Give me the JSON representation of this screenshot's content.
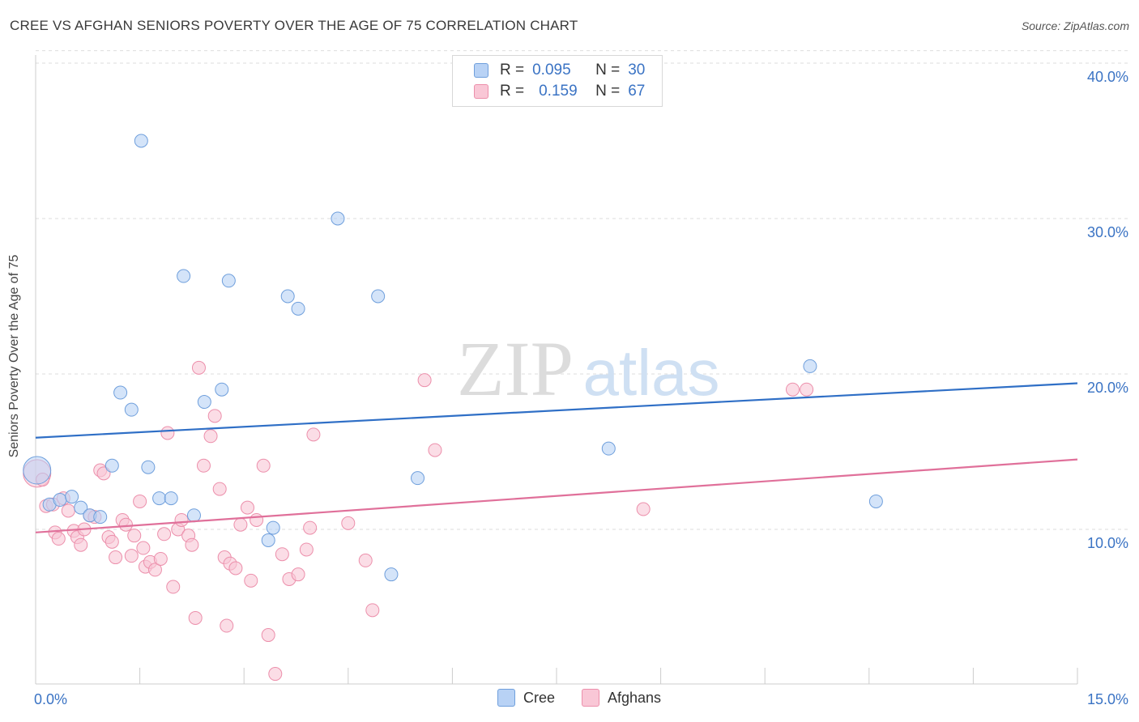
{
  "title": "CREE VS AFGHAN SENIORS POVERTY OVER THE AGE OF 75 CORRELATION CHART",
  "source": "Source: ZipAtlas.com",
  "watermark": {
    "zip": "ZIP",
    "atlas": "atlas"
  },
  "legend_top": {
    "cree": {
      "r_label": "R =",
      "r_value": "0.095",
      "n_label": "N =",
      "n_value": "30"
    },
    "afghans": {
      "r_label": "R =",
      "r_value": "0.159",
      "n_label": "N =",
      "n_value": "67"
    }
  },
  "legend_bottom": {
    "cree": "Cree",
    "afghans": "Afghans"
  },
  "colors": {
    "cree_fill": "#b8d2f5",
    "cree_stroke": "#6f9fdc",
    "cree_line": "#2f6fc6",
    "afghan_fill": "#f9c7d6",
    "afghan_stroke": "#ec8fab",
    "afghan_line": "#e0709a",
    "grid": "#dddddd",
    "tick_label": "#3a73c4"
  },
  "chart_data": {
    "type": "scatter",
    "title": "CREE VS AFGHAN SENIORS POVERTY OVER THE AGE OF 75 CORRELATION CHART",
    "xlabel": "",
    "ylabel": "Seniors Poverty Over the Age of 75",
    "xlim": [
      0,
      15
    ],
    "ylim": [
      0,
      40.8
    ],
    "x_tick_labels": [
      "0.0%",
      "15.0%"
    ],
    "y_ticks": [
      10,
      20,
      30,
      40
    ],
    "y_tick_labels": [
      "10.0%",
      "20.0%",
      "30.0%",
      "40.0%"
    ],
    "grid": true,
    "legend_position": "top-center",
    "series": [
      {
        "name": "Cree",
        "R": 0.095,
        "N": 30,
        "trend": {
          "x": [
            0,
            15
          ],
          "y": [
            15.9,
            19.4
          ]
        },
        "points": [
          {
            "x": 0.02,
            "y": 13.8,
            "big": true
          },
          {
            "x": 0.2,
            "y": 11.6
          },
          {
            "x": 0.35,
            "y": 11.9
          },
          {
            "x": 0.52,
            "y": 12.1
          },
          {
            "x": 0.65,
            "y": 11.4
          },
          {
            "x": 0.78,
            "y": 10.9
          },
          {
            "x": 0.93,
            "y": 10.8
          },
          {
            "x": 1.1,
            "y": 14.1
          },
          {
            "x": 1.22,
            "y": 18.8
          },
          {
            "x": 1.38,
            "y": 17.7
          },
          {
            "x": 1.52,
            "y": 35.0
          },
          {
            "x": 1.62,
            "y": 14.0
          },
          {
            "x": 1.78,
            "y": 12.0
          },
          {
            "x": 1.95,
            "y": 12.0
          },
          {
            "x": 2.13,
            "y": 26.3
          },
          {
            "x": 2.28,
            "y": 10.9
          },
          {
            "x": 2.43,
            "y": 18.2
          },
          {
            "x": 2.68,
            "y": 19.0
          },
          {
            "x": 2.78,
            "y": 26.0
          },
          {
            "x": 3.35,
            "y": 9.3
          },
          {
            "x": 3.42,
            "y": 10.1
          },
          {
            "x": 3.63,
            "y": 25.0
          },
          {
            "x": 3.78,
            "y": 24.2
          },
          {
            "x": 4.35,
            "y": 30.0
          },
          {
            "x": 4.93,
            "y": 25.0
          },
          {
            "x": 5.12,
            "y": 7.1
          },
          {
            "x": 5.5,
            "y": 13.3
          },
          {
            "x": 8.25,
            "y": 15.2
          },
          {
            "x": 11.15,
            "y": 20.5
          },
          {
            "x": 12.1,
            "y": 11.8
          }
        ]
      },
      {
        "name": "Afghans",
        "R": 0.159,
        "N": 67,
        "trend": {
          "x": [
            0,
            15
          ],
          "y": [
            9.8,
            14.5
          ]
        },
        "points": [
          {
            "x": 0.02,
            "y": 13.6,
            "big": true
          },
          {
            "x": 0.1,
            "y": 13.2
          },
          {
            "x": 0.15,
            "y": 11.5
          },
          {
            "x": 0.25,
            "y": 11.6
          },
          {
            "x": 0.28,
            "y": 9.8
          },
          {
            "x": 0.33,
            "y": 9.4
          },
          {
            "x": 0.4,
            "y": 12.0
          },
          {
            "x": 0.47,
            "y": 11.2
          },
          {
            "x": 0.55,
            "y": 9.9
          },
          {
            "x": 0.6,
            "y": 9.5
          },
          {
            "x": 0.65,
            "y": 9.0
          },
          {
            "x": 0.7,
            "y": 10.0
          },
          {
            "x": 0.78,
            "y": 10.9
          },
          {
            "x": 0.85,
            "y": 10.8
          },
          {
            "x": 0.93,
            "y": 13.8
          },
          {
            "x": 0.98,
            "y": 13.6
          },
          {
            "x": 1.05,
            "y": 9.5
          },
          {
            "x": 1.1,
            "y": 9.2
          },
          {
            "x": 1.15,
            "y": 8.2
          },
          {
            "x": 1.25,
            "y": 10.6
          },
          {
            "x": 1.3,
            "y": 10.3
          },
          {
            "x": 1.38,
            "y": 8.3
          },
          {
            "x": 1.42,
            "y": 9.6
          },
          {
            "x": 1.5,
            "y": 11.8
          },
          {
            "x": 1.55,
            "y": 8.8
          },
          {
            "x": 1.58,
            "y": 7.6
          },
          {
            "x": 1.65,
            "y": 7.9
          },
          {
            "x": 1.72,
            "y": 7.4
          },
          {
            "x": 1.8,
            "y": 8.1
          },
          {
            "x": 1.85,
            "y": 9.7
          },
          {
            "x": 1.9,
            "y": 16.2
          },
          {
            "x": 1.98,
            "y": 6.3
          },
          {
            "x": 2.05,
            "y": 10.0
          },
          {
            "x": 2.1,
            "y": 10.6
          },
          {
            "x": 2.2,
            "y": 9.6
          },
          {
            "x": 2.25,
            "y": 9.0
          },
          {
            "x": 2.3,
            "y": 4.3
          },
          {
            "x": 2.35,
            "y": 20.4
          },
          {
            "x": 2.42,
            "y": 14.1
          },
          {
            "x": 2.52,
            "y": 16.0
          },
          {
            "x": 2.58,
            "y": 17.3
          },
          {
            "x": 2.65,
            "y": 12.6
          },
          {
            "x": 2.72,
            "y": 8.2
          },
          {
            "x": 2.75,
            "y": 3.8
          },
          {
            "x": 2.8,
            "y": 7.8
          },
          {
            "x": 2.88,
            "y": 7.5
          },
          {
            "x": 2.95,
            "y": 10.3
          },
          {
            "x": 3.05,
            "y": 11.4
          },
          {
            "x": 3.1,
            "y": 6.7
          },
          {
            "x": 3.18,
            "y": 10.6
          },
          {
            "x": 3.28,
            "y": 14.1
          },
          {
            "x": 3.35,
            "y": 3.2
          },
          {
            "x": 3.45,
            "y": 0.7
          },
          {
            "x": 3.55,
            "y": 8.4
          },
          {
            "x": 3.65,
            "y": 6.8
          },
          {
            "x": 3.78,
            "y": 7.1
          },
          {
            "x": 3.9,
            "y": 8.7
          },
          {
            "x": 3.95,
            "y": 10.1
          },
          {
            "x": 4.0,
            "y": 16.1
          },
          {
            "x": 4.5,
            "y": 10.4
          },
          {
            "x": 4.75,
            "y": 8.0
          },
          {
            "x": 4.85,
            "y": 4.8
          },
          {
            "x": 5.6,
            "y": 19.6
          },
          {
            "x": 5.75,
            "y": 15.1
          },
          {
            "x": 8.75,
            "y": 11.3
          },
          {
            "x": 10.9,
            "y": 19.0
          },
          {
            "x": 11.1,
            "y": 19.0
          }
        ]
      }
    ]
  }
}
